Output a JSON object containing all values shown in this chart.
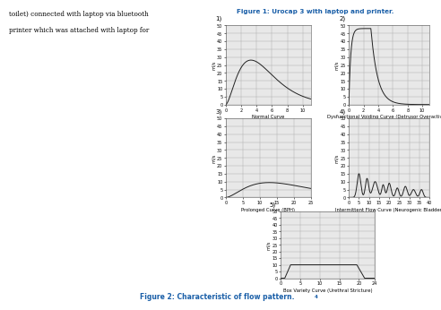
{
  "title_fig1": "Figure 1: Urocap 3 with laptop and printer.",
  "title_fig2": "Figure 2: Characteristic of flow pattern.",
  "title_fig2_superscript": "4",
  "bg_color": "#ffffff",
  "plot_bg": "#e8e8e8",
  "line_color": "#222222",
  "grid_color": "#b0b0b0",
  "label1": "Normal Curve",
  "label2": "Dysfunctional Voiding Curve (Detrusor Overactivity)",
  "label3": "Prolonged Curve (BPH)",
  "label4": "Intermittent Flow Curve (Neurogenic Bladder)",
  "label5": "Box Variety Curve (Urethral Stricture)",
  "panel_numbers": [
    "1)",
    "2)",
    "3)",
    "4)",
    "5)"
  ],
  "ylabel": "ml/s",
  "ylim1": [
    0,
    50
  ],
  "ylim2": [
    0,
    50
  ],
  "ylim3": [
    0,
    50
  ],
  "ylim4": [
    0,
    50
  ],
  "ylim5": [
    0,
    50
  ],
  "yticks1": [
    0,
    5,
    10,
    15,
    20,
    25,
    30,
    35,
    40,
    45,
    50
  ],
  "yticks2": [
    0,
    5,
    10,
    15,
    20,
    25,
    30,
    35,
    40,
    45,
    50
  ],
  "yticks3": [
    0,
    5,
    10,
    15,
    20,
    25,
    30,
    35,
    40,
    45,
    50
  ],
  "yticks4": [
    0,
    5,
    10,
    15,
    20,
    25,
    30,
    35,
    40,
    45,
    50
  ],
  "yticks5": [
    0,
    5,
    10,
    15,
    20,
    25,
    30,
    35,
    40,
    45,
    50
  ],
  "xlim1": [
    0,
    11
  ],
  "xlim2": [
    0,
    11
  ],
  "xlim3": [
    0,
    25
  ],
  "xlim4": [
    0,
    40
  ],
  "xlim5": [
    0,
    24
  ],
  "xticks1": [
    0,
    2,
    4,
    6,
    8,
    10
  ],
  "xticks2": [
    0,
    2,
    4,
    6,
    8,
    10
  ],
  "xticks3": [
    0,
    5,
    10,
    15,
    20,
    25
  ],
  "xticks4": [
    0,
    5,
    10,
    15,
    20,
    25,
    30,
    35,
    40
  ],
  "xticks5": [
    0,
    5,
    10,
    15,
    20,
    24
  ],
  "left_text_lines": [
    "toilet) connected with laptop via bluetooth",
    "printer which was attached with laptop for"
  ]
}
